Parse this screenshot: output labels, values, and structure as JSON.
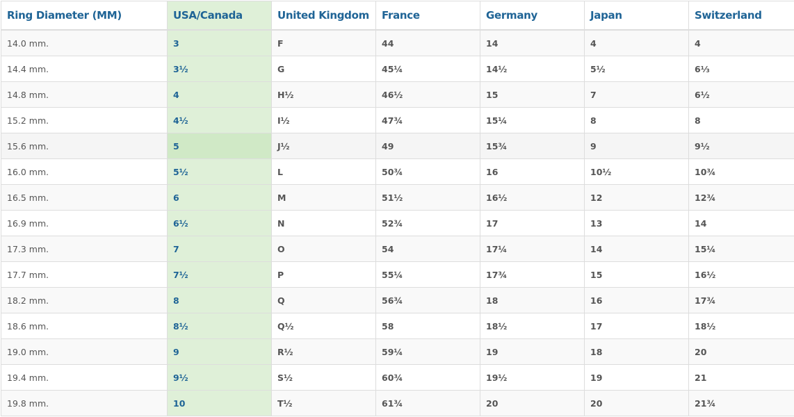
{
  "table": {
    "headers": [
      "Ring Diameter (MM)",
      "USA/Canada",
      "United Kingdom",
      "France",
      "Germany",
      "Japan",
      "Switzerland"
    ],
    "highlight_color": "#dff0d8",
    "header_color": "#1f6496",
    "hovered_row": 4,
    "rows": [
      [
        "14.0 mm.",
        "3",
        "F",
        "44",
        "14",
        "4",
        "4"
      ],
      [
        "14.4 mm.",
        "3½",
        "G",
        "45¼",
        "14½",
        "5½",
        "6⅓"
      ],
      [
        "14.8 mm.",
        "4",
        "H½",
        "46½",
        "15",
        "7",
        "6½"
      ],
      [
        "15.2 mm.",
        "4½",
        "I½",
        "47¾",
        "15¼",
        "8",
        "8"
      ],
      [
        "15.6 mm.",
        "5",
        "J½",
        "49",
        "15¾",
        "9",
        "9½"
      ],
      [
        "16.0 mm.",
        "5½",
        "L",
        "50¾",
        "16",
        "10½",
        "10¾"
      ],
      [
        "16.5 mm.",
        "6",
        "M",
        "51½",
        "16½",
        "12",
        "12¾"
      ],
      [
        "16.9 mm.",
        "6½",
        "N",
        "52¾",
        "17",
        "13",
        "14"
      ],
      [
        "17.3 mm.",
        "7",
        "O",
        "54",
        "17¼",
        "14",
        "15¼"
      ],
      [
        "17.7 mm.",
        "7½",
        "P",
        "55¼",
        "17¾",
        "15",
        "16½"
      ],
      [
        "18.2 mm.",
        "8",
        "Q",
        "56¾",
        "18",
        "16",
        "17¾"
      ],
      [
        "18.6 mm.",
        "8½",
        "Q½",
        "58",
        "18½",
        "17",
        "18½"
      ],
      [
        "19.0 mm.",
        "9",
        "R½",
        "59¼",
        "19",
        "18",
        "20"
      ],
      [
        "19.4 mm.",
        "9½",
        "S½",
        "60¾",
        "19½",
        "19",
        "21"
      ],
      [
        "19.8 mm.",
        "10",
        "T½",
        "61¾",
        "20",
        "20",
        "21¾"
      ]
    ]
  }
}
